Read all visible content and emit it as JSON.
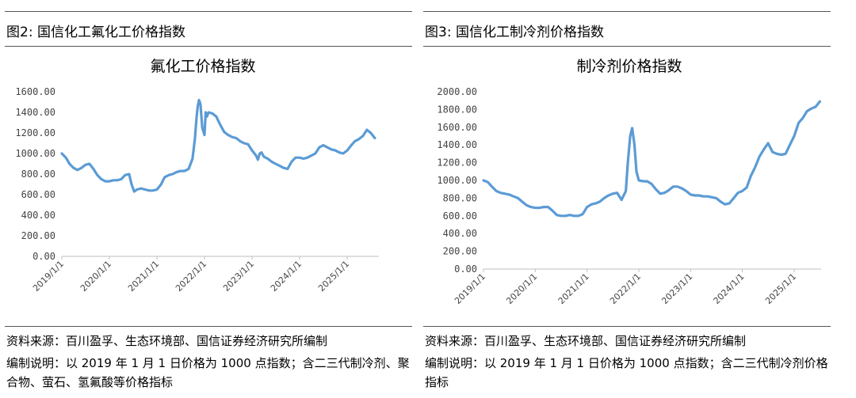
{
  "figures": [
    {
      "figure_label": "图2: 国信化工氟化工价格指数",
      "source": "资料来源：百川盈孚、生态环境部、国信证券经济研究所编制",
      "description": "编制说明：以 2019 年 1 月 1 日价格为 1000 点指数；含二三代制冷剂、聚合物、萤石、氢氟酸等价格指标",
      "line_color": "#5b9bd5",
      "chart_data": {
        "type": "line",
        "title": "氟化工价格指数",
        "xlabel": "",
        "ylabel": "",
        "ylim": [
          0,
          1600
        ],
        "yticks": [
          "0.00",
          "200.00",
          "400.00",
          "600.00",
          "800.00",
          "1000.00",
          "1200.00",
          "1400.00",
          "1600.00"
        ],
        "xticks": [
          "2019/1/1",
          "2020/1/1",
          "2021/1/1",
          "2022/1/1",
          "2023/1/1",
          "2024/1/1",
          "2025/1/1"
        ],
        "xlim": [
          "2019-01-01",
          "2025-09-01"
        ],
        "grid": false,
        "legend": "none",
        "series": [
          {
            "x": [
              "2019-01-01",
              "2019-02-01",
              "2019-03-01",
              "2019-04-01",
              "2019-05-01",
              "2019-06-01",
              "2019-07-01",
              "2019-08-01",
              "2019-09-01",
              "2019-10-01",
              "2019-11-01",
              "2019-12-01",
              "2020-01-01",
              "2020-02-01",
              "2020-03-01",
              "2020-04-01",
              "2020-05-01",
              "2020-06-01",
              "2020-06-20",
              "2020-07-10",
              "2020-08-01",
              "2020-09-01",
              "2020-10-01",
              "2020-11-01",
              "2020-12-01",
              "2021-01-01",
              "2021-02-01",
              "2021-03-01",
              "2021-04-01",
              "2021-05-01",
              "2021-06-01",
              "2021-07-01",
              "2021-08-01",
              "2021-09-01",
              "2021-10-01",
              "2021-10-20",
              "2021-11-01",
              "2021-11-10",
              "2021-11-20",
              "2021-12-01",
              "2021-12-15",
              "2022-01-01",
              "2022-01-10",
              "2022-01-20",
              "2022-02-01",
              "2022-03-01",
              "2022-04-01",
              "2022-05-01",
              "2022-06-01",
              "2022-07-01",
              "2022-08-01",
              "2022-09-01",
              "2022-10-01",
              "2022-11-01",
              "2022-12-01",
              "2023-01-01",
              "2023-02-01",
              "2023-02-15",
              "2023-03-01",
              "2023-03-15",
              "2023-04-01",
              "2023-05-01",
              "2023-06-01",
              "2023-07-01",
              "2023-08-01",
              "2023-09-01",
              "2023-10-01",
              "2023-11-01",
              "2023-12-01",
              "2024-01-01",
              "2024-02-01",
              "2024-03-01",
              "2024-04-01",
              "2024-05-01",
              "2024-06-01",
              "2024-07-01",
              "2024-08-01",
              "2024-09-01",
              "2024-10-01",
              "2024-11-01",
              "2024-12-01",
              "2025-01-01",
              "2025-02-01",
              "2025-03-01",
              "2025-04-01",
              "2025-05-01",
              "2025-06-01",
              "2025-07-01",
              "2025-08-01"
            ],
            "y": [
              1000,
              960,
              900,
              860,
              840,
              860,
              890,
              900,
              850,
              790,
              750,
              730,
              730,
              740,
              740,
              750,
              790,
              800,
              700,
              630,
              650,
              660,
              650,
              640,
              640,
              650,
              700,
              770,
              790,
              800,
              820,
              830,
              830,
              850,
              950,
              1150,
              1350,
              1460,
              1520,
              1480,
              1250,
              1180,
              1400,
              1360,
              1400,
              1390,
              1360,
              1280,
              1210,
              1180,
              1160,
              1150,
              1120,
              1100,
              1090,
              1030,
              980,
              940,
              1000,
              1010,
              970,
              950,
              920,
              900,
              880,
              860,
              850,
              920,
              960,
              960,
              950,
              960,
              980,
              1000,
              1060,
              1080,
              1060,
              1040,
              1030,
              1010,
              1000,
              1030,
              1080,
              1120,
              1140,
              1170,
              1230,
              1200,
              1150
            ]
          }
        ]
      }
    },
    {
      "figure_label": "图3: 国信化工制冷剂价格指数",
      "source": "资料来源：百川盈孚、生态环境部、国信证券经济研究所编制",
      "description": "编制说明：以 2019 年 1 月 1 日价格为 1000 点指数；含二三代制冷剂价格指标",
      "line_color": "#5b9bd5",
      "chart_data": {
        "type": "line",
        "title": "制冷剂价格指数",
        "xlabel": "",
        "ylabel": "",
        "ylim": [
          0,
          2000
        ],
        "yticks": [
          "0.00",
          "200.00",
          "400.00",
          "600.00",
          "800.00",
          "1000.00",
          "1200.00",
          "1400.00",
          "1600.00",
          "1800.00",
          "2000.00"
        ],
        "xticks": [
          "2019/1/1",
          "2020/1/1",
          "2021/1/1",
          "2022/1/1",
          "2023/1/1",
          "2024/1/1",
          "2025/1/1"
        ],
        "xlim": [
          "2019-01-01",
          "2025-07-10"
        ],
        "grid": false,
        "legend": "none",
        "series": [
          {
            "x": [
              "2019-01-01",
              "2019-02-01",
              "2019-03-01",
              "2019-04-01",
              "2019-05-01",
              "2019-06-01",
              "2019-07-01",
              "2019-08-01",
              "2019-09-01",
              "2019-10-01",
              "2019-11-01",
              "2019-12-01",
              "2020-01-01",
              "2020-02-01",
              "2020-03-01",
              "2020-04-01",
              "2020-05-01",
              "2020-06-01",
              "2020-07-01",
              "2020-08-01",
              "2020-09-01",
              "2020-10-01",
              "2020-11-01",
              "2020-12-01",
              "2021-01-01",
              "2021-02-01",
              "2021-03-01",
              "2021-04-01",
              "2021-05-01",
              "2021-06-01",
              "2021-07-01",
              "2021-08-01",
              "2021-09-01",
              "2021-10-01",
              "2021-10-15",
              "2021-11-01",
              "2021-11-15",
              "2021-12-01",
              "2021-12-15",
              "2022-01-01",
              "2022-02-01",
              "2022-03-01",
              "2022-04-01",
              "2022-05-01",
              "2022-06-01",
              "2022-07-01",
              "2022-08-01",
              "2022-09-01",
              "2022-10-01",
              "2022-11-01",
              "2022-12-01",
              "2023-01-01",
              "2023-02-01",
              "2023-03-01",
              "2023-04-01",
              "2023-05-01",
              "2023-06-01",
              "2023-07-01",
              "2023-08-01",
              "2023-09-01",
              "2023-10-01",
              "2023-11-01",
              "2023-12-01",
              "2024-01-01",
              "2024-02-01",
              "2024-03-01",
              "2024-04-01",
              "2024-05-01",
              "2024-06-01",
              "2024-07-01",
              "2024-08-01",
              "2024-09-01",
              "2024-10-01",
              "2024-11-01",
              "2024-12-01",
              "2025-01-01",
              "2025-02-01",
              "2025-03-01",
              "2025-04-01",
              "2025-05-01",
              "2025-06-01",
              "2025-07-01"
            ],
            "y": [
              1000,
              980,
              930,
              880,
              860,
              850,
              840,
              820,
              800,
              760,
              720,
              700,
              690,
              690,
              700,
              700,
              660,
              610,
              600,
              600,
              610,
              600,
              600,
              620,
              700,
              730,
              740,
              760,
              800,
              830,
              850,
              860,
              780,
              880,
              1200,
              1500,
              1590,
              1400,
              1100,
              1000,
              990,
              990,
              960,
              900,
              850,
              860,
              890,
              930,
              930,
              910,
              880,
              840,
              830,
              830,
              820,
              820,
              810,
              800,
              760,
              730,
              740,
              800,
              860,
              880,
              920,
              1050,
              1150,
              1270,
              1350,
              1420,
              1320,
              1300,
              1290,
              1300,
              1400,
              1500,
              1650,
              1700,
              1780,
              1810,
              1830,
              1890
            ]
          }
        ]
      }
    }
  ]
}
